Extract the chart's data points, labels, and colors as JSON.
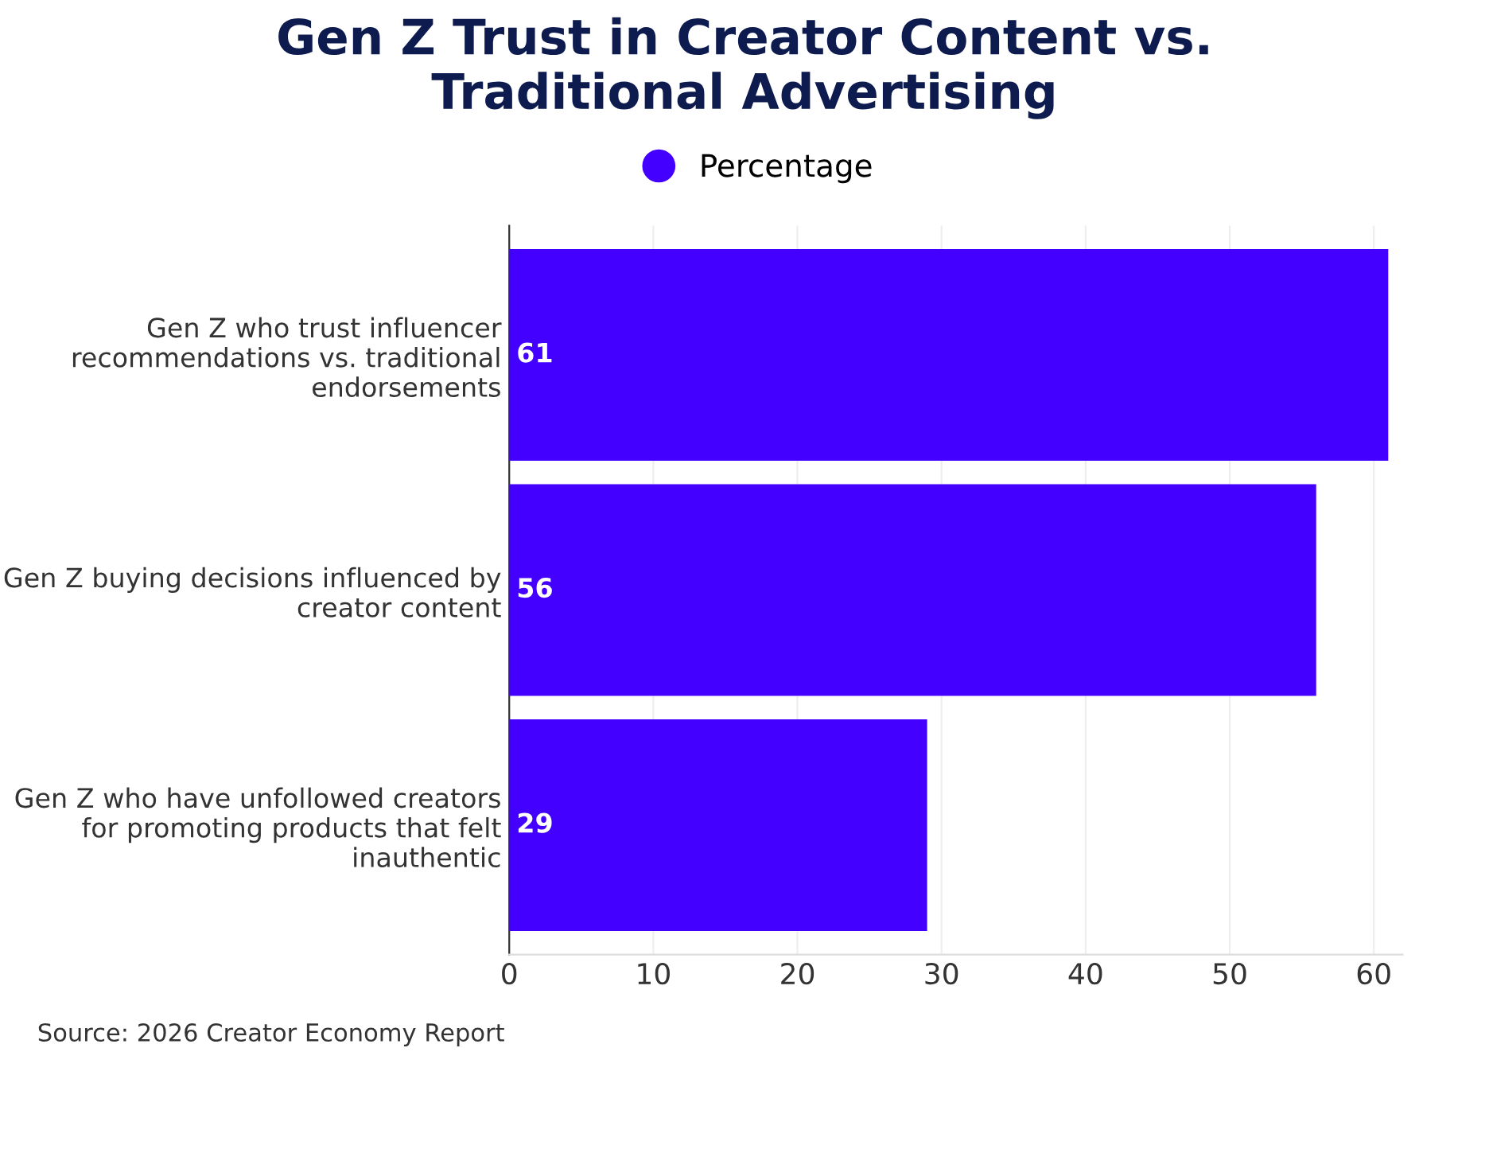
{
  "chart_data": {
    "type": "bar",
    "orientation": "horizontal",
    "title": "Gen Z Trust in Creator Content vs.\nTraditional Advertising",
    "categories": [
      "Gen Z who trust influencer\nrecommendations vs. traditional\nendorsements",
      "Gen Z buying decisions influenced by\ncreator content",
      "Gen Z who have unfollowed creators\nfor promoting products that felt\ninauthentic"
    ],
    "series": [
      {
        "name": "Percentage",
        "color": "#4400ff",
        "values": [
          61,
          56,
          29
        ]
      }
    ],
    "xlim": [
      0,
      62
    ],
    "xticks": [
      0,
      10,
      20,
      30,
      40,
      50,
      60
    ],
    "grid": "x",
    "legend": "top",
    "data_labels": true,
    "annotations": [
      "Source: 2026 Creator Economy Report"
    ]
  }
}
